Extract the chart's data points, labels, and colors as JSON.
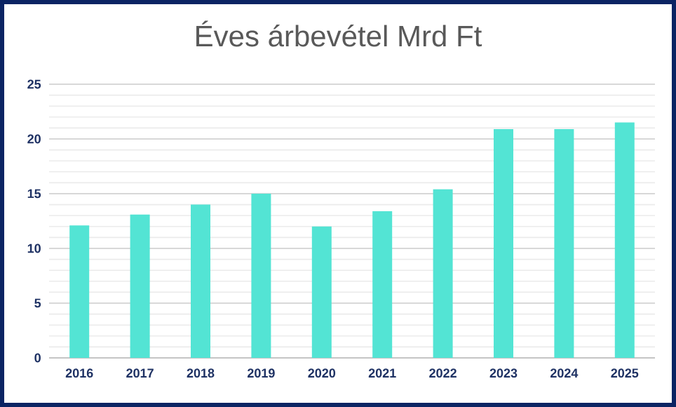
{
  "chart_data": {
    "type": "bar",
    "title": "Éves árbevétel Mrd Ft",
    "categories": [
      "2016",
      "2017",
      "2018",
      "2019",
      "2020",
      "2021",
      "2022",
      "2023",
      "2024",
      "2025"
    ],
    "values": [
      12.1,
      13.1,
      14.0,
      15.0,
      12.0,
      13.4,
      15.4,
      20.9,
      20.9,
      21.5
    ],
    "color": "#53e4d4",
    "ylim": [
      0,
      25
    ],
    "yticks": [
      0,
      5,
      10,
      15,
      20,
      25
    ],
    "grid": "y"
  }
}
